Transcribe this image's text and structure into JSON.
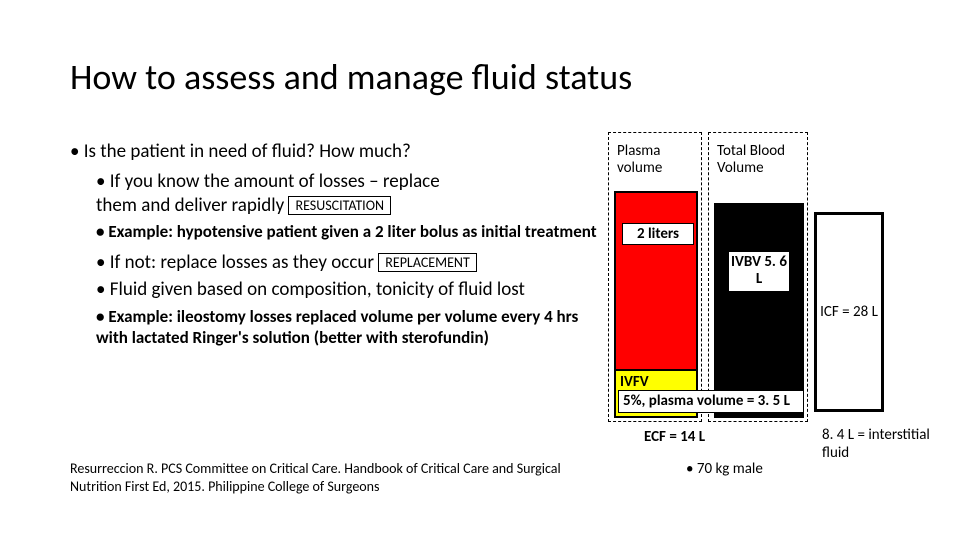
{
  "title": "How to assess and manage fluid status",
  "bullets": {
    "q": "Is the patient in need of fluid? How much?",
    "b1_line1": "If you know the amount of losses – replace",
    "b1_line2_pre": "them and deliver rapidly ",
    "tag_resus": "RESUSCITATION",
    "b1_ex": "Example: hypotensive patient given a 2 liter bolus as initial treatment",
    "b2_pre": "If not: replace losses as they occur ",
    "tag_repl": "REPLACEMENT",
    "b3": "Fluid given based on composition, tonicity of fluid lost",
    "b3_ex": "Example: ileostomy losses replaced volume per volume every 4 hrs with lactated Ringer's solution (better with sterofundin)"
  },
  "citation": "Resurreccion R. PCS Committee on Critical Care. Handbook of Critical Care and Surgical Nutrition First Ed, 2015. Philippine College of Surgeons",
  "diagram": {
    "plasma_label": "Plasma volume",
    "two_liters": "2 liters",
    "ivfv": "IVFV",
    "tbv_label": "Total Blood Volume",
    "ivbv": "IVBV 5. 6 L",
    "pct5": "5%, plasma volume = 3. 5 L",
    "icf": "ICF = 28 L",
    "ecf": "ECF = 14 L",
    "interstitial": "8. 4 L = interstitial fluid",
    "male70": "70 kg male",
    "colors": {
      "red": "#ff0000",
      "yellow": "#ffff00",
      "black": "#000000",
      "white": "#ffffff"
    }
  }
}
